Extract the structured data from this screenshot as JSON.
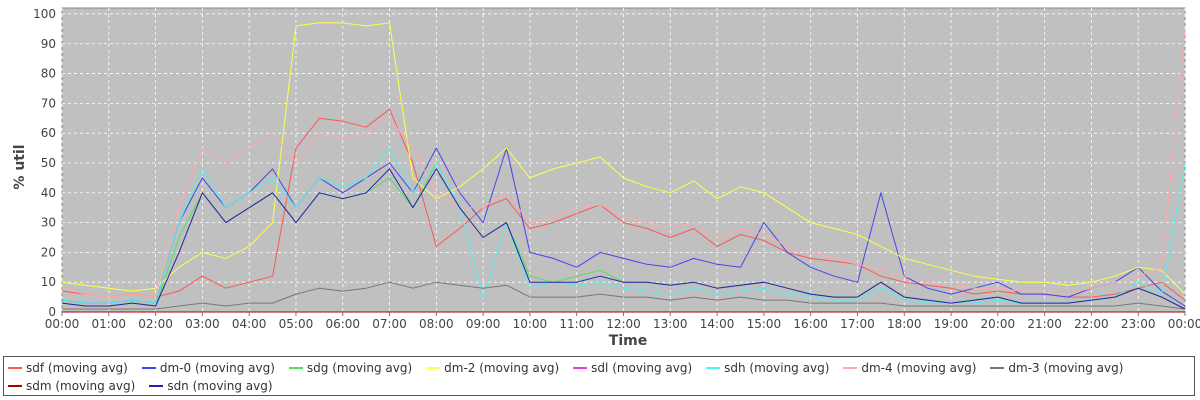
{
  "chart_data": {
    "type": "line",
    "xlabel": "Time",
    "ylabel": "% util",
    "ylim": [
      0,
      102
    ],
    "xlim": [
      "00:00",
      "24:00"
    ],
    "x_ticks": [
      "00:00",
      "01:00",
      "02:00",
      "03:00",
      "04:00",
      "05:00",
      "06:00",
      "07:00",
      "08:00",
      "09:00",
      "10:00",
      "11:00",
      "12:00",
      "13:00",
      "14:00",
      "15:00",
      "16:00",
      "17:00",
      "18:00",
      "19:00",
      "20:00",
      "21:00",
      "22:00",
      "23:00",
      "00:00"
    ],
    "y_ticks": [
      0,
      10,
      20,
      30,
      40,
      50,
      60,
      70,
      80,
      90,
      100
    ],
    "grid": true,
    "legend_position": "bottom",
    "x": [
      "00:00",
      "00:30",
      "01:00",
      "01:30",
      "02:00",
      "02:30",
      "03:00",
      "03:30",
      "04:00",
      "04:30",
      "05:00",
      "05:30",
      "06:00",
      "06:30",
      "07:00",
      "07:30",
      "08:00",
      "08:30",
      "09:00",
      "09:30",
      "10:00",
      "10:30",
      "11:00",
      "11:30",
      "12:00",
      "12:30",
      "13:00",
      "13:30",
      "14:00",
      "14:30",
      "15:00",
      "15:30",
      "16:00",
      "16:30",
      "17:00",
      "17:30",
      "18:00",
      "18:30",
      "19:00",
      "19:30",
      "20:00",
      "20:30",
      "21:00",
      "21:30",
      "22:00",
      "22:30",
      "23:00",
      "23:30",
      "24:00"
    ],
    "series": [
      {
        "name": "sdf (moving avg)",
        "color": "#ff5555",
        "values": [
          7,
          6,
          5,
          6,
          5,
          7,
          12,
          8,
          10,
          12,
          55,
          65,
          64,
          62,
          68,
          50,
          22,
          28,
          35,
          38,
          28,
          30,
          33,
          36,
          30,
          28,
          25,
          28,
          22,
          26,
          24,
          20,
          18,
          17,
          16,
          12,
          10,
          9,
          8,
          6,
          7,
          6,
          6,
          5,
          5,
          6,
          8,
          10,
          4
        ]
      },
      {
        "name": "dm-0 (moving avg)",
        "color": "#4444ee",
        "values": [
          4,
          3,
          3,
          4,
          3,
          30,
          45,
          35,
          40,
          48,
          35,
          45,
          40,
          45,
          50,
          40,
          55,
          40,
          30,
          55,
          20,
          18,
          15,
          20,
          18,
          16,
          15,
          18,
          16,
          15,
          30,
          20,
          15,
          12,
          10,
          40,
          12,
          8,
          6,
          8,
          10,
          6,
          6,
          5,
          8,
          10,
          15,
          7,
          2
        ]
      },
      {
        "name": "sdg (moving avg)",
        "color": "#55dd55",
        "values": [
          3,
          2,
          2,
          3,
          2,
          25,
          40,
          30,
          35,
          40,
          30,
          40,
          38,
          40,
          45,
          35,
          50,
          35,
          25,
          30,
          12,
          10,
          12,
          14,
          10,
          10,
          9,
          10,
          8,
          9,
          10,
          8,
          6,
          5,
          5,
          10,
          5,
          4,
          3,
          4,
          5,
          3,
          3,
          3,
          4,
          5,
          8,
          5,
          1
        ]
      },
      {
        "name": "dm-2 (moving avg)",
        "color": "#ffff44",
        "values": [
          10,
          9,
          8,
          7,
          8,
          15,
          20,
          18,
          22,
          30,
          96,
          97,
          97,
          96,
          97,
          45,
          38,
          42,
          48,
          55,
          45,
          48,
          50,
          52,
          45,
          42,
          40,
          44,
          38,
          42,
          40,
          35,
          30,
          28,
          26,
          22,
          18,
          16,
          14,
          12,
          11,
          10,
          10,
          9,
          10,
          12,
          15,
          14,
          6
        ]
      },
      {
        "name": "sdl (moving avg)",
        "color": "#dd44dd",
        "values": [
          0,
          0,
          0,
          0,
          0,
          0,
          0,
          0,
          0,
          0,
          0,
          0,
          0,
          0,
          0,
          0,
          0,
          0,
          0,
          0,
          0,
          0,
          0,
          0,
          0,
          0,
          0,
          0,
          0,
          0,
          0,
          0,
          0,
          0,
          0,
          0,
          0,
          0,
          0,
          0,
          0,
          0,
          0,
          0,
          0,
          0,
          0,
          0,
          0
        ]
      },
      {
        "name": "sdh (moving avg)",
        "color": "#55eeee",
        "values": [
          4,
          3,
          3,
          4,
          3,
          30,
          48,
          35,
          40,
          45,
          35,
          45,
          42,
          45,
          55,
          40,
          50,
          35,
          5,
          30,
          8,
          10,
          9,
          10,
          8,
          7,
          6,
          8,
          6,
          7,
          8,
          6,
          5,
          4,
          4,
          8,
          4,
          3,
          3,
          3,
          4,
          3,
          3,
          3,
          4,
          5,
          10,
          6,
          50
        ]
      },
      {
        "name": "dm-4 (moving avg)",
        "color": "#ffaaaa",
        "values": [
          8,
          6,
          5,
          6,
          5,
          35,
          55,
          50,
          55,
          60,
          50,
          60,
          58,
          60,
          65,
          55,
          40,
          35,
          35,
          40,
          30,
          32,
          35,
          36,
          32,
          30,
          28,
          30,
          25,
          28,
          26,
          22,
          20,
          18,
          16,
          14,
          12,
          10,
          9,
          8,
          8,
          7,
          7,
          6,
          8,
          10,
          12,
          15,
          95
        ]
      },
      {
        "name": "dm-3 (moving avg)",
        "color": "#777777",
        "values": [
          1,
          1,
          1,
          1,
          1,
          2,
          3,
          2,
          3,
          3,
          6,
          8,
          7,
          8,
          10,
          8,
          10,
          9,
          8,
          9,
          5,
          5,
          5,
          6,
          5,
          5,
          4,
          5,
          4,
          5,
          4,
          4,
          3,
          3,
          3,
          3,
          2,
          2,
          2,
          2,
          2,
          2,
          2,
          2,
          2,
          2,
          3,
          2,
          1
        ]
      },
      {
        "name": "sdm (moving avg)",
        "color": "#aa0000",
        "values": [
          0,
          0,
          0,
          0,
          0,
          0,
          0,
          0,
          0,
          0,
          0,
          0,
          0,
          0,
          0,
          0,
          0,
          0,
          0,
          0,
          0,
          0,
          0,
          0,
          0,
          0,
          0,
          0,
          0,
          0,
          0,
          0,
          0,
          0,
          0,
          0,
          0,
          0,
          0,
          0,
          0,
          0,
          0,
          0,
          0,
          0,
          0,
          0,
          0
        ]
      },
      {
        "name": "sdn (moving avg)",
        "color": "#2222aa",
        "values": [
          3,
          2,
          2,
          3,
          2,
          20,
          40,
          30,
          35,
          40,
          30,
          40,
          38,
          40,
          48,
          35,
          48,
          35,
          25,
          30,
          10,
          10,
          10,
          12,
          10,
          10,
          9,
          10,
          8,
          9,
          10,
          8,
          6,
          5,
          5,
          10,
          5,
          4,
          3,
          4,
          5,
          3,
          3,
          3,
          4,
          5,
          8,
          5,
          1
        ]
      }
    ]
  }
}
